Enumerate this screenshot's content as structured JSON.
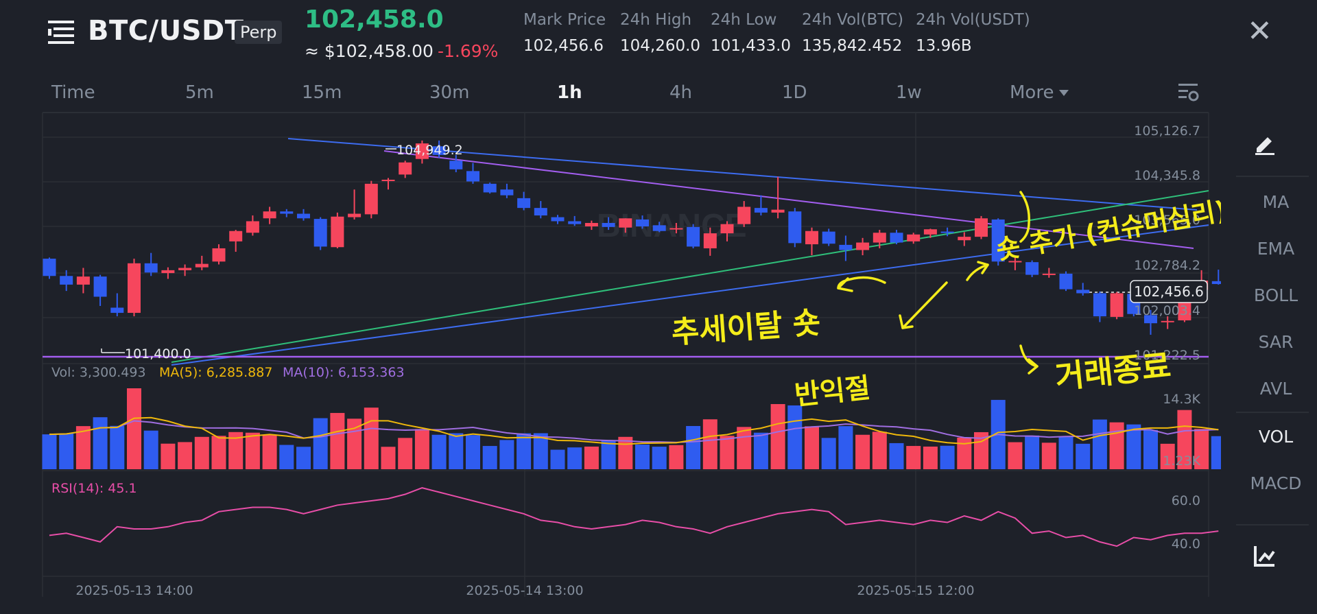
{
  "header": {
    "symbol": "BTC/USDT",
    "contract_badge": "Perp",
    "last_price": "102,458.0",
    "usd_price": "≈ $102,458.00",
    "change_pct": "-1.69%",
    "stats": [
      {
        "label": "Mark Price",
        "value": "102,456.6"
      },
      {
        "label": "24h High",
        "value": "104,260.0"
      },
      {
        "label": "24h Low",
        "value": "101,433.0"
      },
      {
        "label": "24h Vol(BTC)",
        "value": "135,842.452"
      },
      {
        "label": "24h Vol(USDT)",
        "value": "13.96B"
      }
    ],
    "close_glyph": "✕"
  },
  "timeframes": {
    "items": [
      "Time",
      "5m",
      "15m",
      "30m",
      "1h",
      "4h",
      "1D",
      "1w"
    ],
    "active": "1h",
    "more_label": "More"
  },
  "side_panel": {
    "indicators": [
      "MA",
      "EMA",
      "BOLL",
      "SAR",
      "AVL",
      "VOL",
      "MACD"
    ],
    "active": "VOL"
  },
  "chart": {
    "price_axis": [
      "105,126.7",
      "104,345.8",
      "103,565.0",
      "102,784.2",
      "102,003.4",
      "101,222.5"
    ],
    "current_price_tag": "102,456.6",
    "high_marker": "104,949.2",
    "low_marker": "101,400.0",
    "watermark": "BINANCE",
    "volume_header": {
      "vol": "Vol: 3,300.493",
      "ma5": "MA(5): 6,285.887",
      "ma10": "MA(10): 6,153.363"
    },
    "volume_axis": [
      "14.3K",
      "1.23K"
    ],
    "rsi_label": "RSI(14): 45.1",
    "rsi_axis": [
      "60.0",
      "40.0"
    ],
    "time_axis": [
      "2025-05-13 14:00",
      "2025-05-14 13:00",
      "2025-05-15 12:00"
    ],
    "colors": {
      "up": "#f6465d",
      "down": "#2f5cf0",
      "ma5": "#f0b90b",
      "ma10": "#a06ee1",
      "rsi": "#e84ea8",
      "handwriting": "#f4ec1a"
    }
  },
  "annotations": {
    "left_text": "추세이탈 숏",
    "mid_text": "반익절",
    "right_text": "숏 추가 (컨슈머심리)",
    "bottom_text": "거래종료"
  },
  "chart_data": {
    "type": "candlestick",
    "interval": "1h",
    "x_labels": [
      "2025-05-13 14:00",
      "2025-05-14 13:00",
      "2025-05-15 12:00"
    ],
    "ohlc": [
      [
        102900,
        102920,
        102550,
        102600
      ],
      [
        102600,
        102700,
        102340,
        102450
      ],
      [
        102450,
        102740,
        102300,
        102590
      ],
      [
        102590,
        102620,
        102080,
        102240
      ],
      [
        102050,
        102300,
        101900,
        101960
      ],
      [
        101960,
        102900,
        101900,
        102820
      ],
      [
        102820,
        103000,
        102600,
        102660
      ],
      [
        102650,
        102750,
        102550,
        102700
      ],
      [
        102700,
        102800,
        102600,
        102740
      ],
      [
        102750,
        102950,
        102700,
        102810
      ],
      [
        102850,
        103150,
        102800,
        103080
      ],
      [
        103200,
        103400,
        103020,
        103380
      ],
      [
        103350,
        103650,
        103300,
        103550
      ],
      [
        103600,
        103800,
        103500,
        103720
      ],
      [
        103720,
        103760,
        103620,
        103680
      ],
      [
        103680,
        103760,
        103560,
        103600
      ],
      [
        103590,
        103620,
        103050,
        103110
      ],
      [
        103100,
        103700,
        103080,
        103630
      ],
      [
        103620,
        104100,
        103580,
        103680
      ],
      [
        103670,
        104250,
        103600,
        104200
      ],
      [
        104250,
        104300,
        104100,
        104270
      ],
      [
        104360,
        104600,
        104300,
        104570
      ],
      [
        104630,
        104950,
        104550,
        104900
      ],
      [
        104850,
        104950,
        104650,
        104700
      ],
      [
        104600,
        104700,
        104400,
        104450
      ],
      [
        104420,
        104560,
        104200,
        104240
      ],
      [
        104200,
        104220,
        104030,
        104050
      ],
      [
        104100,
        104200,
        103950,
        104000
      ],
      [
        103950,
        104060,
        103740,
        103780
      ],
      [
        103780,
        103900,
        103600,
        103650
      ],
      [
        103620,
        103660,
        103500,
        103550
      ],
      [
        103550,
        103640,
        103470,
        103500
      ],
      [
        103460,
        103560,
        103400,
        103520
      ],
      [
        103520,
        103620,
        103400,
        103450
      ],
      [
        103440,
        103600,
        103350,
        103600
      ],
      [
        103580,
        103650,
        103420,
        103460
      ],
      [
        103480,
        103540,
        103360,
        103380
      ],
      [
        103420,
        103520,
        103340,
        103430
      ],
      [
        103450,
        103500,
        103080,
        103110
      ],
      [
        103080,
        103440,
        102950,
        103340
      ],
      [
        103340,
        103550,
        103200,
        103500
      ],
      [
        103500,
        103900,
        103450,
        103800
      ],
      [
        103780,
        104000,
        103650,
        103700
      ],
      [
        103700,
        104320,
        103600,
        103750
      ],
      [
        103720,
        103780,
        103100,
        103170
      ],
      [
        103150,
        103440,
        102960,
        103380
      ],
      [
        103370,
        103420,
        103120,
        103160
      ],
      [
        103140,
        103300,
        102860,
        103050
      ],
      [
        103050,
        103260,
        102960,
        103180
      ],
      [
        103180,
        103400,
        103080,
        103350
      ],
      [
        103350,
        103400,
        103150,
        103180
      ],
      [
        103200,
        103350,
        103160,
        103320
      ],
      [
        103320,
        103420,
        103260,
        103410
      ],
      [
        103370,
        103440,
        103290,
        103360
      ],
      [
        103220,
        103360,
        103120,
        103280
      ],
      [
        103280,
        103640,
        103240,
        103600
      ],
      [
        103580,
        103600,
        102780,
        102850
      ],
      [
        102840,
        102920,
        102700,
        102860
      ],
      [
        102840,
        102870,
        102580,
        102620
      ],
      [
        102620,
        102740,
        102570,
        102640
      ],
      [
        102640,
        102680,
        102340,
        102370
      ],
      [
        102360,
        102480,
        102260,
        102300
      ],
      [
        102300,
        102330,
        101800,
        101900
      ],
      [
        101890,
        102320,
        101850,
        102300
      ],
      [
        102290,
        102320,
        101900,
        101940
      ],
      [
        101920,
        102010,
        101580,
        101780
      ],
      [
        101810,
        101900,
        101680,
        101820
      ],
      [
        101830,
        102460,
        101800,
        102380
      ],
      [
        102360,
        102700,
        102320,
        102520
      ],
      [
        102510,
        102710,
        102450,
        102460
      ]
    ],
    "volume_axis": [
      "1.23K",
      "14.3K"
    ],
    "volume_last": 3300.493,
    "ma5_volume": 6285.887,
    "ma10_volume": 6153.363,
    "rsi14_last": 45.1,
    "rsi_series": [
      44,
      45,
      43,
      41,
      48,
      47,
      47,
      48,
      50,
      51,
      55,
      56,
      57,
      57,
      56,
      54,
      56,
      58,
      59,
      60,
      61,
      63,
      66,
      64,
      62,
      60,
      58,
      56,
      54,
      51,
      50,
      48,
      47,
      48,
      49,
      51,
      50,
      48,
      47,
      45,
      48,
      50,
      52,
      54,
      55,
      56,
      55,
      49,
      50,
      51,
      50,
      49,
      51,
      50,
      53,
      51,
      55,
      52,
      45,
      46,
      43,
      44,
      41,
      39,
      43,
      42,
      44,
      45,
      45,
      46
    ]
  }
}
